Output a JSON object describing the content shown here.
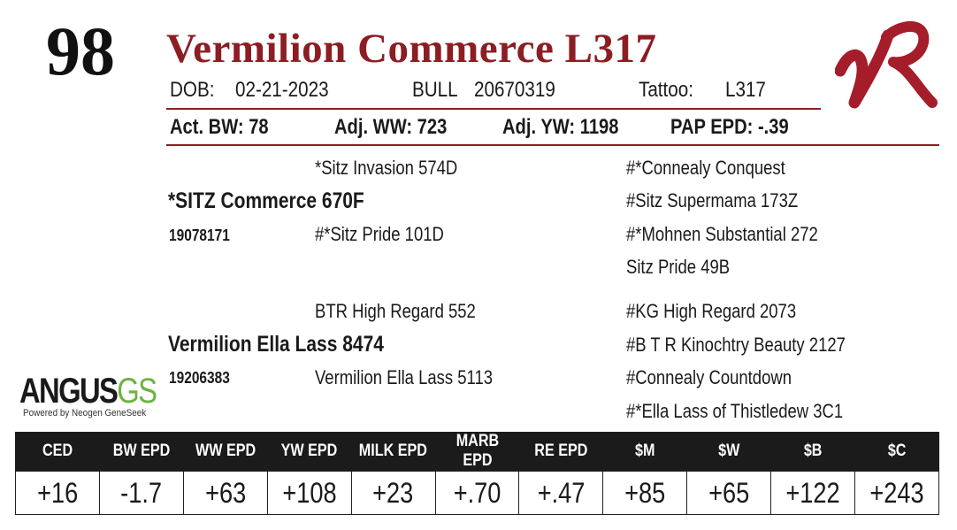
{
  "lot_number": "98",
  "animal_name": "Vermilion Commerce L317",
  "info": {
    "dob_label": "DOB:",
    "dob": "02-21-2023",
    "sex": "BULL",
    "registration": "20670319",
    "tattoo_label": "Tattoo:",
    "tattoo": "L317"
  },
  "performance": {
    "act_bw": "Act. BW: 78",
    "adj_ww": "Adj. WW: 723",
    "adj_yw": "Adj. YW: 1198",
    "pap_epd": "PAP EPD: -.39"
  },
  "pedigree": {
    "sire": "*SITZ Commerce 670F",
    "sire_reg": "19078171",
    "sire_sire": "*Sitz Invasion 574D",
    "sire_dam": "#*Sitz Pride 101D",
    "sire_sire_sire": "#*Connealy Conquest",
    "sire_sire_dam": "#Sitz Supermama 173Z",
    "sire_dam_sire": "#*Mohnen Substantial 272",
    "sire_dam_dam": "Sitz Pride 49B",
    "dam": "Vermilion Ella Lass 8474",
    "dam_reg": "19206383",
    "dam_sire": "BTR High Regard 552",
    "dam_dam": "Vermilion Ella Lass 5113",
    "dam_sire_sire": "#KG High Regard 2073",
    "dam_sire_dam": "#B T R Kinochtry Beauty 2127",
    "dam_dam_sire": "#Connealy Countdown",
    "dam_dam_dam": "#*Ella Lass of Thistledew 3C1"
  },
  "logo": {
    "brand_mark": "VR",
    "brand_color": "#a51c2a",
    "angus_word": "ANGUS",
    "angus_gs": "GS",
    "angus_tagline": "Powered by Neogen GeneSeek"
  },
  "epd_table": {
    "headers": [
      "CED",
      "BW EPD",
      "WW EPD",
      "YW EPD",
      "MILK EPD",
      "MARB EPD",
      "RE EPD",
      "$M",
      "$W",
      "$B",
      "$C"
    ],
    "values": [
      "+16",
      "-1.7",
      "+63",
      "+108",
      "+23",
      "+.70",
      "+.47",
      "+85",
      "+65",
      "+122",
      "+243"
    ]
  },
  "colors": {
    "title": "#8c1d23",
    "rule": "#8c1d23",
    "table_header_bg": "#1b1b1b",
    "angus_green": "#6cb33f"
  }
}
